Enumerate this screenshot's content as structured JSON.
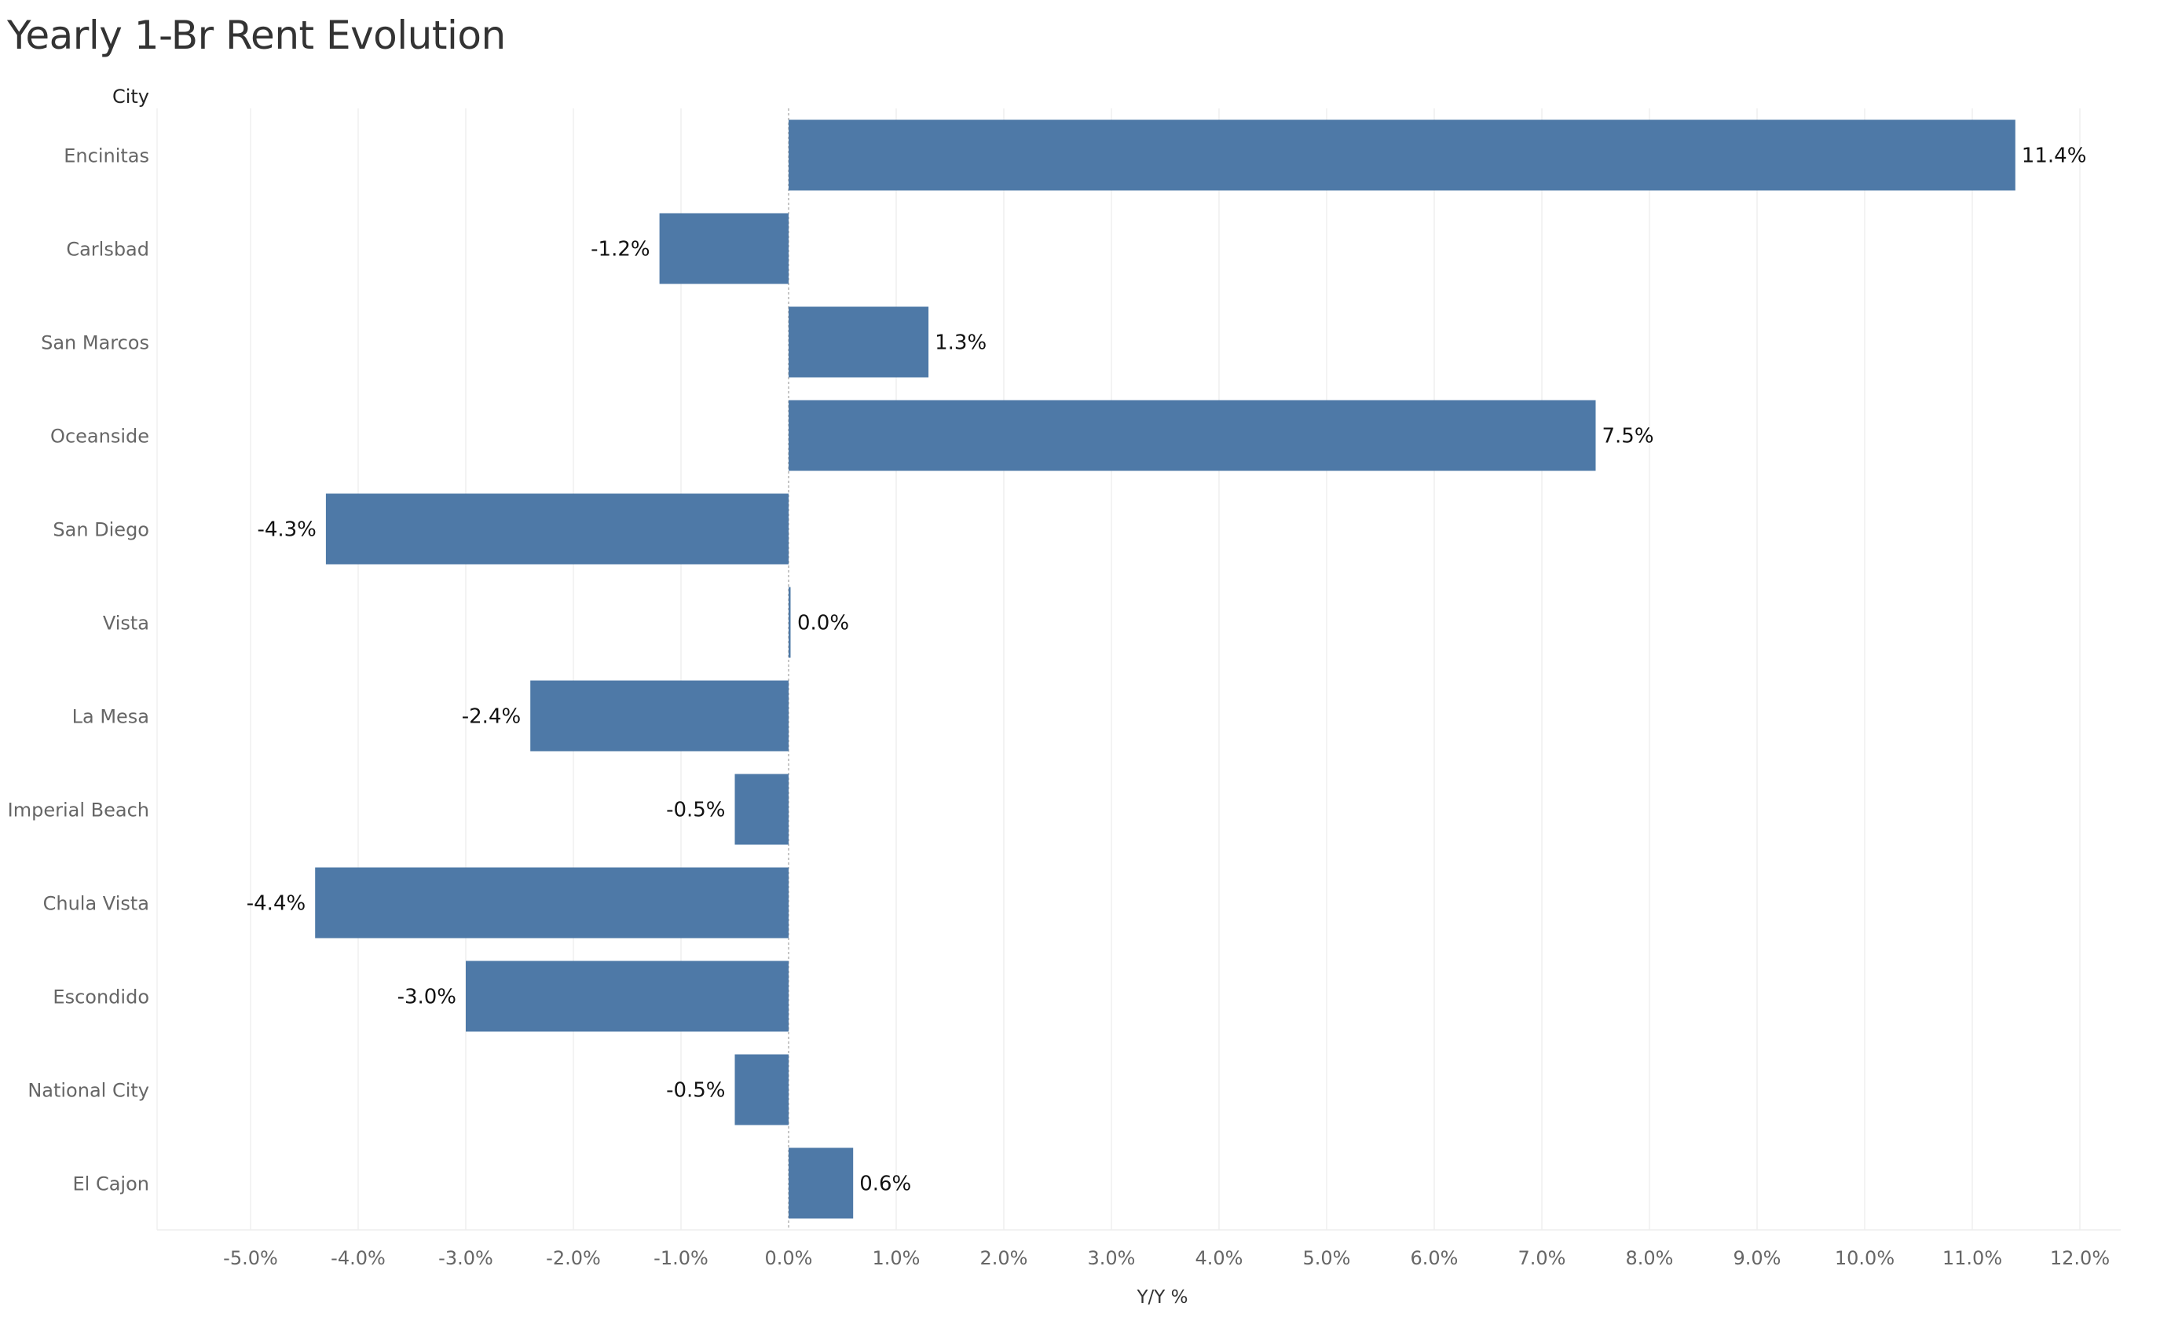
{
  "chart_data": {
    "type": "bar",
    "orientation": "horizontal",
    "title": "Yearly 1-Br Rent Evolution",
    "category_header": "City",
    "xlabel": "Y/Y %",
    "categories": [
      "Encinitas",
      "Carlsbad",
      "San Marcos",
      "Oceanside",
      "San Diego",
      "Vista",
      "La Mesa",
      "Imperial Beach",
      "Chula Vista",
      "Escondido",
      "National City",
      "El Cajon"
    ],
    "values": [
      11.4,
      -1.2,
      1.3,
      7.5,
      -4.3,
      0.0,
      -2.4,
      -0.5,
      -4.4,
      -3.0,
      -0.5,
      0.6
    ],
    "data_labels": [
      "11.4%",
      "-1.2%",
      "1.3%",
      "7.5%",
      "-4.3%",
      "0.0%",
      "-2.4%",
      "-0.5%",
      "-4.4%",
      "-3.0%",
      "-0.5%",
      "0.6%"
    ],
    "xlim": [
      -5.9,
      12.3
    ],
    "x_ticks": [
      -5,
      -4,
      -3,
      -2,
      -1,
      0,
      1,
      2,
      3,
      4,
      5,
      6,
      7,
      8,
      9,
      10,
      11,
      12
    ],
    "x_tick_labels": [
      "-5.0%",
      "-4.0%",
      "-3.0%",
      "-2.0%",
      "-1.0%",
      "0.0%",
      "1.0%",
      "2.0%",
      "3.0%",
      "4.0%",
      "5.0%",
      "6.0%",
      "7.0%",
      "8.0%",
      "9.0%",
      "10.0%",
      "11.0%",
      "12.0%"
    ],
    "grid": "vertical",
    "colors": {
      "bar": "#4e79a7",
      "zero_line": "#b3b3b3",
      "grid": "#efefef"
    }
  }
}
